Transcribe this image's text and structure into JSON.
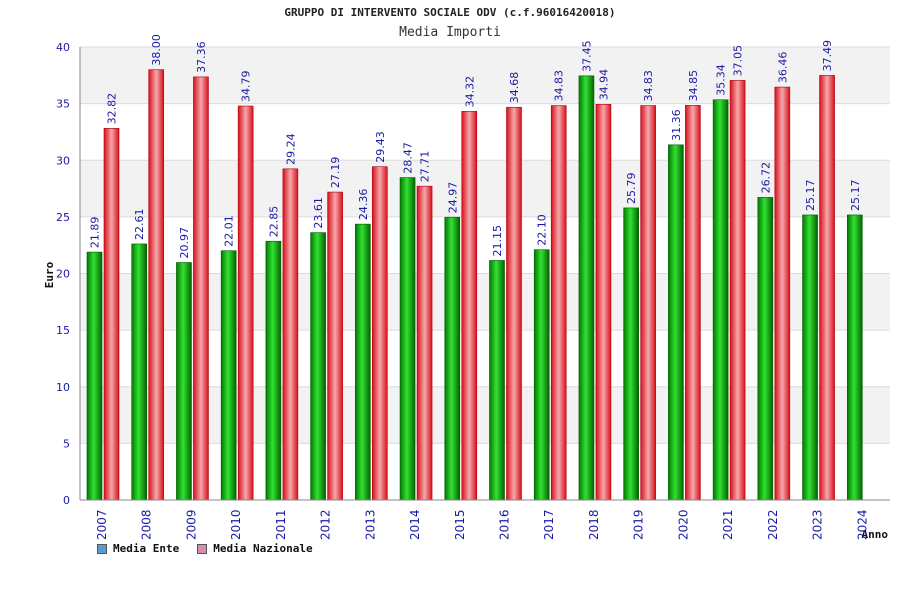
{
  "chart_data": {
    "type": "bar",
    "title": "GRUPPO DI INTERVENTO SOCIALE ODV (c.f.96016420018)",
    "subtitle": "Media Importi",
    "xlabel": "Anno",
    "ylabel": "Euro",
    "ylim": [
      0,
      40
    ],
    "yticks": [
      0,
      5,
      10,
      15,
      20,
      25,
      30,
      35,
      40
    ],
    "categories": [
      "2007",
      "2008",
      "2009",
      "2010",
      "2011",
      "2012",
      "2013",
      "2014",
      "2015",
      "2016",
      "2017",
      "2018",
      "2019",
      "2020",
      "2021",
      "2022",
      "2023",
      "2024"
    ],
    "series": [
      {
        "name": "Media Ente",
        "color": "#00b000",
        "values": [
          21.89,
          22.61,
          20.97,
          22.01,
          22.85,
          23.61,
          24.36,
          28.47,
          24.97,
          21.15,
          22.1,
          37.45,
          25.79,
          31.36,
          35.34,
          26.72,
          25.17,
          25.17
        ],
        "labels": [
          "21.89",
          "22.61",
          "20.97",
          "22.01",
          "22.85",
          "23.61",
          "24.36",
          "28.47",
          "24.97",
          "21.15",
          "22.10",
          "37.45",
          "25.79",
          "31.36",
          "35.34",
          "26.72",
          "25.17",
          "25.17"
        ]
      },
      {
        "name": "Media Nazionale",
        "color": "#e8202a",
        "values": [
          32.82,
          38.0,
          37.36,
          34.79,
          29.24,
          27.19,
          29.43,
          27.71,
          34.32,
          34.68,
          34.83,
          34.94,
          34.83,
          34.85,
          37.05,
          36.46,
          37.49,
          null
        ],
        "labels": [
          "32.82",
          "38.00",
          "37.36",
          "34.79",
          "29.24",
          "27.19",
          "29.43",
          "27.71",
          "34.32",
          "34.68",
          "34.83",
          "34.94",
          "34.83",
          "34.85",
          "37.05",
          "36.46",
          "37.49",
          ""
        ]
      }
    ],
    "legend": [
      {
        "label": "Media Ente",
        "color": "#5b9bd5"
      },
      {
        "label": "Media Nazionale",
        "color": "#d98cb3"
      }
    ],
    "legend_position": "bottom-left"
  }
}
